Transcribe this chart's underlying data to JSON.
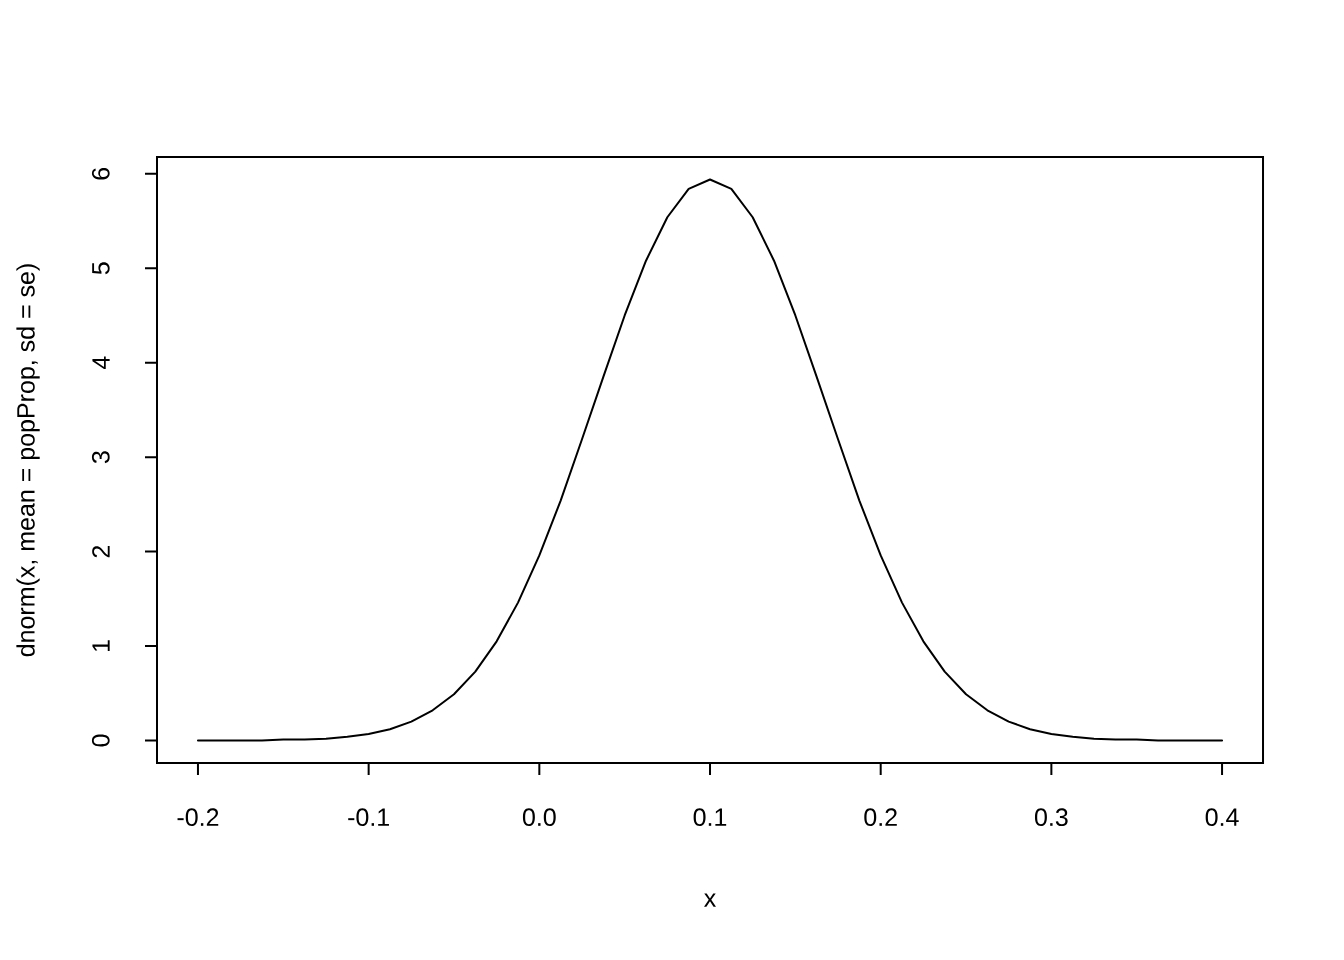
{
  "chart_data": {
    "type": "line",
    "xlabel": "x",
    "ylabel": "dnorm(x, mean = popProp, sd = se)",
    "x": [
      -0.2,
      -0.1875,
      -0.175,
      -0.1625,
      -0.15,
      -0.1375,
      -0.125,
      -0.1125,
      -0.1,
      -0.0875,
      -0.075,
      -0.0625,
      -0.05,
      -0.0375,
      -0.025,
      -0.0125,
      0.0,
      0.0125,
      0.025,
      0.0375,
      0.05,
      0.0625,
      0.075,
      0.0875,
      0.1,
      0.1125,
      0.125,
      0.1375,
      0.15,
      0.1625,
      0.175,
      0.1875,
      0.2,
      0.2125,
      0.225,
      0.2375,
      0.25,
      0.2625,
      0.275,
      0.2875,
      0.3,
      0.3125,
      0.325,
      0.3375,
      0.35,
      0.3625,
      0.375,
      0.3875,
      0.4
    ],
    "series": [
      {
        "color": "#000000",
        "values": [
          0.0,
          0.0,
          0.0,
          0.0,
          0.01,
          0.01,
          0.02,
          0.04,
          0.07,
          0.12,
          0.2,
          0.32,
          0.49,
          0.73,
          1.05,
          1.46,
          1.96,
          2.54,
          3.19,
          3.85,
          4.5,
          5.08,
          5.54,
          5.84,
          5.94,
          5.84,
          5.54,
          5.08,
          4.5,
          3.85,
          3.19,
          2.54,
          1.96,
          1.46,
          1.05,
          0.73,
          0.49,
          0.32,
          0.2,
          0.12,
          0.07,
          0.04,
          0.02,
          0.01,
          0.01,
          0.0,
          0.0,
          0.0,
          0.0
        ]
      }
    ],
    "xlim": [
      -0.224,
      0.424
    ],
    "ylim": [
      -0.238,
      6.178
    ],
    "xticks": [
      -0.2,
      -0.1,
      {
        "value": 0.0,
        "label": "0.0"
      },
      0.1,
      0.2,
      0.3,
      0.4
    ],
    "yticks": [
      0,
      1,
      2,
      3,
      4,
      5,
      6
    ],
    "marker": "none",
    "line_style": "solid"
  }
}
